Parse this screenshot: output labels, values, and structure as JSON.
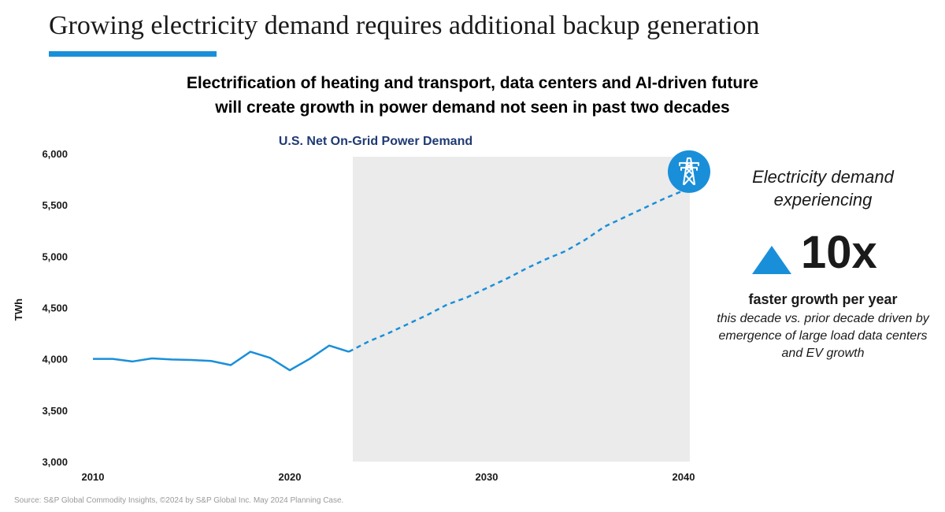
{
  "slide": {
    "title": "Growing electricity demand requires additional backup generation",
    "headline_line1": "Electrification of heating and transport, data centers and AI-driven future",
    "headline_line2": "will create growth in power demand not seen in past two decades",
    "source": "Source: S&P Global Commodity Insights, ©2024 by S&P Global Inc. May 2024 Planning Case.",
    "accent_color": "#1a8fd9"
  },
  "chart_data": {
    "type": "line",
    "title": "U.S. Net On-Grid Power Demand",
    "xlabel": "",
    "ylabel": "TWh",
    "xlim": [
      2010,
      2040
    ],
    "ylim": [
      3000,
      6000
    ],
    "x_ticks": [
      2010,
      2020,
      2030,
      2040
    ],
    "x_tick_labels": [
      "2010",
      "2020",
      "2030",
      "2040"
    ],
    "y_ticks": [
      3000,
      3500,
      4000,
      4500,
      5000,
      5500,
      6000
    ],
    "y_tick_labels": [
      "3,000",
      "3,500",
      "4,000",
      "4,500",
      "5,000",
      "5,500",
      "6,000"
    ],
    "grid": false,
    "legend": "none",
    "forecast_region": {
      "x_start": 2023,
      "x_end": 2040,
      "color": "#ebebeb"
    },
    "end_marker_icon": "transmission-tower-icon",
    "series": [
      {
        "style": "solid",
        "color": "#1a8fd9",
        "points": [
          [
            2010,
            4000
          ],
          [
            2011,
            4000
          ],
          [
            2012,
            3975
          ],
          [
            2013,
            4005
          ],
          [
            2014,
            3995
          ],
          [
            2015,
            3990
          ],
          [
            2016,
            3980
          ],
          [
            2017,
            3940
          ],
          [
            2018,
            4070
          ],
          [
            2019,
            4010
          ],
          [
            2020,
            3890
          ],
          [
            2021,
            4000
          ],
          [
            2022,
            4130
          ],
          [
            2023,
            4070
          ]
        ]
      },
      {
        "style": "dashed",
        "color": "#1a8fd9",
        "points": [
          [
            2023,
            4070
          ],
          [
            2024,
            4170
          ],
          [
            2025,
            4250
          ],
          [
            2026,
            4340
          ],
          [
            2027,
            4430
          ],
          [
            2028,
            4530
          ],
          [
            2029,
            4600
          ],
          [
            2030,
            4690
          ],
          [
            2031,
            4780
          ],
          [
            2032,
            4880
          ],
          [
            2033,
            4970
          ],
          [
            2034,
            5050
          ],
          [
            2035,
            5160
          ],
          [
            2036,
            5290
          ],
          [
            2037,
            5380
          ],
          [
            2038,
            5470
          ],
          [
            2039,
            5560
          ],
          [
            2040,
            5640
          ]
        ]
      }
    ]
  },
  "callout": {
    "lead": "Electricity demand experiencing",
    "multiplier": "10x",
    "multiplier_icon": "up-triangle-icon",
    "emphasis": "faster growth per year",
    "detail": "this decade vs. prior decade driven by emergence of large load data centers and EV growth"
  }
}
